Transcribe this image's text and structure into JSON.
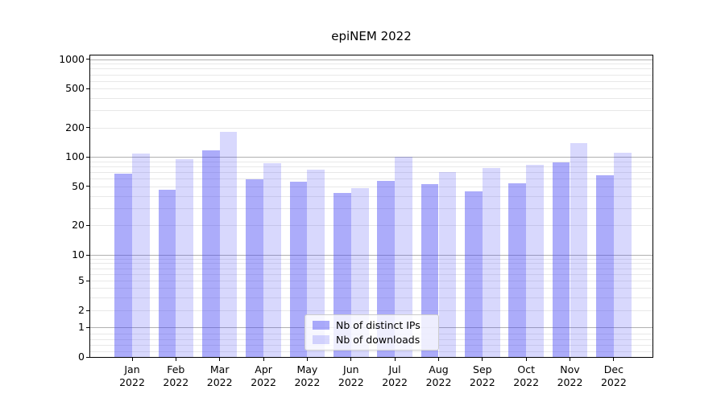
{
  "title": "epiNEM 2022",
  "legend": {
    "items": [
      {
        "label": "Nb of distinct IPs",
        "color": "rgba(70,70,245,0.45)",
        "apparent_hex": "#acacf7"
      },
      {
        "label": "Nb of downloads",
        "color": "rgba(70,70,245,0.21)",
        "apparent_hex": "#d9d9f7"
      }
    ]
  },
  "colors": {
    "major_grid": "#b0b0b0",
    "minor_grid": "#e8e8e8",
    "spine": "#000000",
    "text": "#000000"
  },
  "chart_data": {
    "type": "bar",
    "title": "epiNEM 2022",
    "categories": [
      "Jan 2022",
      "Feb 2022",
      "Mar 2022",
      "Apr 2022",
      "May 2022",
      "Jun 2022",
      "Jul 2022",
      "Aug 2022",
      "Sep 2022",
      "Oct 2022",
      "Nov 2022",
      "Dec 2022"
    ],
    "series": [
      {
        "name": "Nb of distinct IPs",
        "values": [
          68,
          46,
          118,
          59,
          56,
          43,
          57,
          53,
          45,
          54,
          89,
          65
        ]
      },
      {
        "name": "Nb of downloads",
        "values": [
          108,
          96,
          182,
          87,
          74,
          48,
          101,
          70,
          77,
          84,
          138,
          111
        ]
      }
    ],
    "xlabel": "",
    "ylabel": "",
    "yscale": "symlog",
    "yticks": [
      1000,
      500,
      200,
      100,
      50,
      20,
      10,
      5,
      2,
      1,
      0
    ],
    "ylim": [
      0,
      1100
    ],
    "grid": true,
    "legend_position": "lower center"
  }
}
